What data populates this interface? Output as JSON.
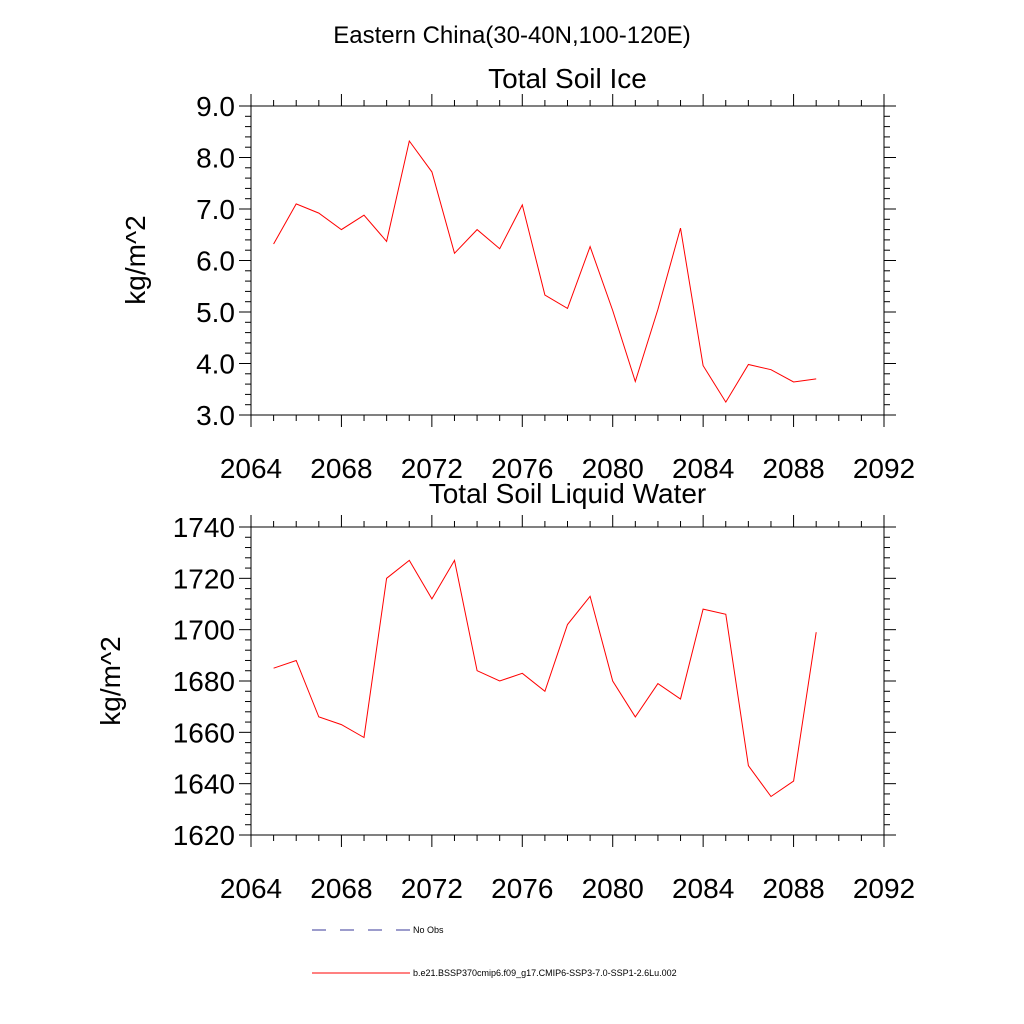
{
  "page": {
    "title": "Eastern China(30-40N,100-120E)"
  },
  "legend": {
    "items": [
      {
        "label": "No Obs",
        "color": "#3a3a99",
        "style": "dashed"
      },
      {
        "label": "b.e21.BSSP370cmip6.f09_g17.CMIP6-SSP3-7.0-SSP1-2.6Lu.002",
        "color": "#ff0000",
        "style": "solid"
      }
    ]
  },
  "chart_data": [
    {
      "type": "line",
      "title": "Total Soil Ice",
      "xlabel": "",
      "ylabel": "kg/m^2",
      "xlim": [
        2064,
        2092
      ],
      "ylim": [
        3.0,
        9.0
      ],
      "xticks": [
        2064,
        2068,
        2072,
        2076,
        2080,
        2084,
        2088,
        2092
      ],
      "xtick_labels": [
        "2064",
        "2068",
        "2072",
        "2076",
        "2080",
        "2084",
        "2088",
        "2092"
      ],
      "yticks": [
        3.0,
        4.0,
        5.0,
        6.0,
        7.0,
        8.0,
        9.0
      ],
      "ytick_labels": [
        "3.0",
        "4.0",
        "5.0",
        "6.0",
        "7.0",
        "8.0",
        "9.0"
      ],
      "grid": false,
      "series": [
        {
          "color": "#ff0000",
          "x": [
            2065,
            2066,
            2067,
            2068,
            2069,
            2070,
            2071,
            2072,
            2073,
            2074,
            2075,
            2076,
            2077,
            2078,
            2079,
            2080,
            2081,
            2082,
            2083,
            2084,
            2085,
            2086,
            2087,
            2088,
            2089
          ],
          "values": [
            6.32,
            7.1,
            6.92,
            6.6,
            6.88,
            6.37,
            8.32,
            7.72,
            6.14,
            6.6,
            6.23,
            7.08,
            5.33,
            5.07,
            6.27,
            5.03,
            3.65,
            5.05,
            6.63,
            3.96,
            3.25,
            3.98,
            3.88,
            3.64,
            3.7
          ]
        }
      ]
    },
    {
      "type": "line",
      "title": "Total Soil Liquid Water",
      "xlabel": "",
      "ylabel": "kg/m^2",
      "xlim": [
        2064,
        2092
      ],
      "ylim": [
        1620,
        1740
      ],
      "xticks": [
        2064,
        2068,
        2072,
        2076,
        2080,
        2084,
        2088,
        2092
      ],
      "xtick_labels": [
        "2064",
        "2068",
        "2072",
        "2076",
        "2080",
        "2084",
        "2088",
        "2092"
      ],
      "yticks": [
        1620,
        1640,
        1660,
        1680,
        1700,
        1720,
        1740
      ],
      "ytick_labels": [
        "1620",
        "1640",
        "1660",
        "1680",
        "1700",
        "1720",
        "1740"
      ],
      "grid": false,
      "series": [
        {
          "color": "#ff0000",
          "x": [
            2065,
            2066,
            2067,
            2068,
            2069,
            2070,
            2071,
            2072,
            2073,
            2074,
            2075,
            2076,
            2077,
            2078,
            2079,
            2080,
            2081,
            2082,
            2083,
            2084,
            2085,
            2086,
            2087,
            2088,
            2089
          ],
          "values": [
            1685,
            1688,
            1666,
            1663,
            1658,
            1720,
            1727,
            1712,
            1727,
            1684,
            1680,
            1683,
            1676,
            1702,
            1713,
            1680,
            1666,
            1679,
            1673,
            1708,
            1706,
            1647,
            1635,
            1641,
            1699
          ]
        }
      ]
    }
  ]
}
